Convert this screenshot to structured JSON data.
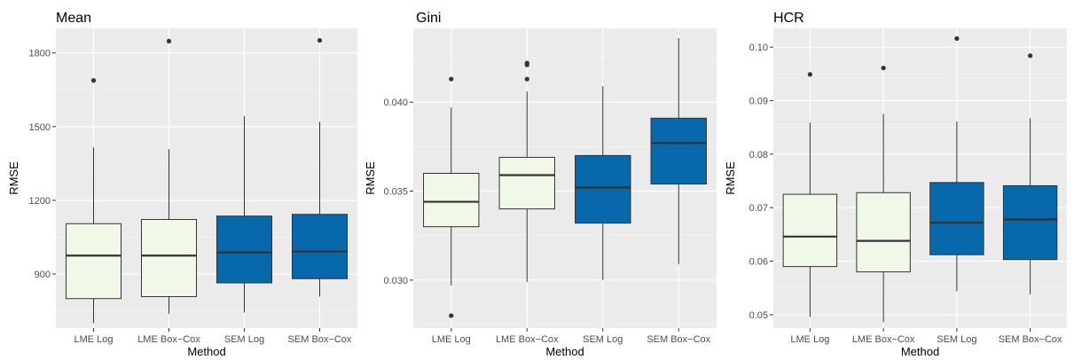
{
  "colors": {
    "panel_bg": "#ebebeb",
    "grid_major": "#ffffff",
    "box_edge": "#333333",
    "outlier": "#333333",
    "fills": {
      "LME Log": "#f0f9e8",
      "LME Box-Cox": "#f0f9e8",
      "SEM Log": "#0868ac",
      "SEM Box-Cox": "#0868ac"
    }
  },
  "chart_data": [
    {
      "type": "boxplot",
      "title": "Mean",
      "xlabel": "Method",
      "ylabel": "RMSE",
      "categories": [
        "LME Log",
        "LME Box−Cox",
        "SEM Log",
        "SEM Box−Cox"
      ],
      "yticks": [
        900,
        1200,
        1500,
        1800
      ],
      "ytick_labels": [
        "900",
        "1200",
        "1500",
        "1800"
      ],
      "ylim": [
        680,
        1900
      ],
      "grid": true,
      "boxes": [
        {
          "category": "LME Log",
          "min": 700,
          "q1": 800,
          "median": 975,
          "q3": 1105,
          "max": 1415,
          "outliers": [
            1688
          ]
        },
        {
          "category": "LME Box−Cox",
          "min": 738,
          "q1": 808,
          "median": 975,
          "q3": 1122,
          "max": 1408,
          "outliers": [
            1848
          ]
        },
        {
          "category": "SEM Log",
          "min": 743,
          "q1": 864,
          "median": 988,
          "q3": 1136,
          "max": 1542,
          "outliers": []
        },
        {
          "category": "SEM Box−Cox",
          "min": 808,
          "q1": 881,
          "median": 992,
          "q3": 1143,
          "max": 1520,
          "outliers": [
            1851
          ]
        }
      ]
    },
    {
      "type": "boxplot",
      "title": "Gini",
      "xlabel": "Method",
      "ylabel": "RMSE",
      "categories": [
        "LME Log",
        "LME Box−Cox",
        "SEM Log",
        "SEM Box−Cox"
      ],
      "yticks": [
        0.03,
        0.035,
        0.04
      ],
      "ytick_labels": [
        "0.030",
        "0.035",
        "0.040"
      ],
      "ylim": [
        0.0273,
        0.04415
      ],
      "grid": true,
      "boxes": [
        {
          "category": "LME Log",
          "min": 0.0297,
          "q1": 0.033,
          "median": 0.0344,
          "q3": 0.036,
          "max": 0.0397,
          "outliers": [
            0.0413,
            0.028
          ]
        },
        {
          "category": "LME Box−Cox",
          "min": 0.0299,
          "q1": 0.034,
          "median": 0.0359,
          "q3": 0.0369,
          "max": 0.0406,
          "outliers": [
            0.0413,
            0.0421,
            0.0422
          ]
        },
        {
          "category": "SEM Log",
          "min": 0.03,
          "q1": 0.0332,
          "median": 0.0352,
          "q3": 0.037,
          "max": 0.0409,
          "outliers": []
        },
        {
          "category": "SEM Box−Cox",
          "min": 0.0309,
          "q1": 0.0354,
          "median": 0.0377,
          "q3": 0.0391,
          "max": 0.0436,
          "outliers": []
        }
      ]
    },
    {
      "type": "boxplot",
      "title": "HCR",
      "xlabel": "Method",
      "ylabel": "RMSE",
      "categories": [
        "LME Log",
        "LME Box−Cox",
        "SEM Log",
        "SEM Box−Cox"
      ],
      "yticks": [
        0.05,
        0.06,
        0.07,
        0.08,
        0.09,
        0.1
      ],
      "ytick_labels": [
        "0.05",
        "0.06",
        "0.07",
        "0.08",
        "0.09",
        "0.10"
      ],
      "ylim": [
        0.0475,
        0.1035
      ],
      "grid": true,
      "boxes": [
        {
          "category": "LME Log",
          "min": 0.0496,
          "q1": 0.059,
          "median": 0.0646,
          "q3": 0.0725,
          "max": 0.0859,
          "outliers": [
            0.0949
          ]
        },
        {
          "category": "LME Box−Cox",
          "min": 0.0486,
          "q1": 0.058,
          "median": 0.0638,
          "q3": 0.0728,
          "max": 0.0875,
          "outliers": [
            0.0961
          ]
        },
        {
          "category": "SEM Log",
          "min": 0.0544,
          "q1": 0.0612,
          "median": 0.0672,
          "q3": 0.0747,
          "max": 0.0861,
          "outliers": [
            0.1016
          ]
        },
        {
          "category": "SEM Box−Cox",
          "min": 0.0538,
          "q1": 0.0603,
          "median": 0.0678,
          "q3": 0.0741,
          "max": 0.0867,
          "outliers": [
            0.0984
          ]
        }
      ]
    }
  ]
}
